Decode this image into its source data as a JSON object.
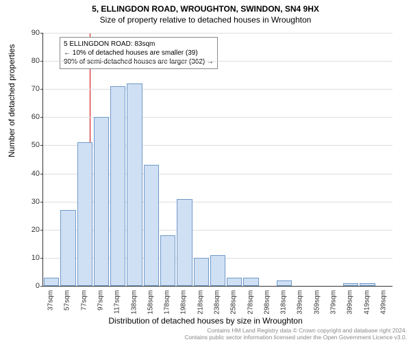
{
  "title": "5, ELLINGDON ROAD, WROUGHTON, SWINDON, SN4 9HX",
  "subtitle": "Size of property relative to detached houses in Wroughton",
  "ylabel": "Number of detached properties",
  "xlabel": "Distribution of detached houses by size in Wroughton",
  "chart": {
    "type": "histogram",
    "ylim": [
      0,
      90
    ],
    "ytick_step": 10,
    "bar_fill": "#cfe0f4",
    "bar_border": "#6f99c8",
    "grid_color": "#dddddd",
    "background_color": "#ffffff",
    "refline_x": 83,
    "refline_color": "#cc0000",
    "categories": [
      "37sqm",
      "57sqm",
      "77sqm",
      "97sqm",
      "117sqm",
      "138sqm",
      "158sqm",
      "178sqm",
      "198sqm",
      "218sqm",
      "238sqm",
      "258sqm",
      "278sqm",
      "298sqm",
      "318sqm",
      "339sqm",
      "359sqm",
      "379sqm",
      "399sqm",
      "419sqm",
      "439sqm"
    ],
    "values": [
      3,
      27,
      51,
      60,
      71,
      72,
      43,
      18,
      31,
      10,
      11,
      3,
      3,
      0,
      2,
      0,
      0,
      0,
      1,
      1,
      0
    ]
  },
  "annotation": {
    "line1": "5 ELLINGDON ROAD: 83sqm",
    "line2": "← 10% of detached houses are smaller (39)",
    "line3": "90% of semi-detached houses are larger (362) →"
  },
  "license": {
    "line1": "Contains HM Land Registry data © Crown copyright and database right 2024.",
    "line2": "Contains public sector information licensed under the Open Government Licence v3.0."
  }
}
